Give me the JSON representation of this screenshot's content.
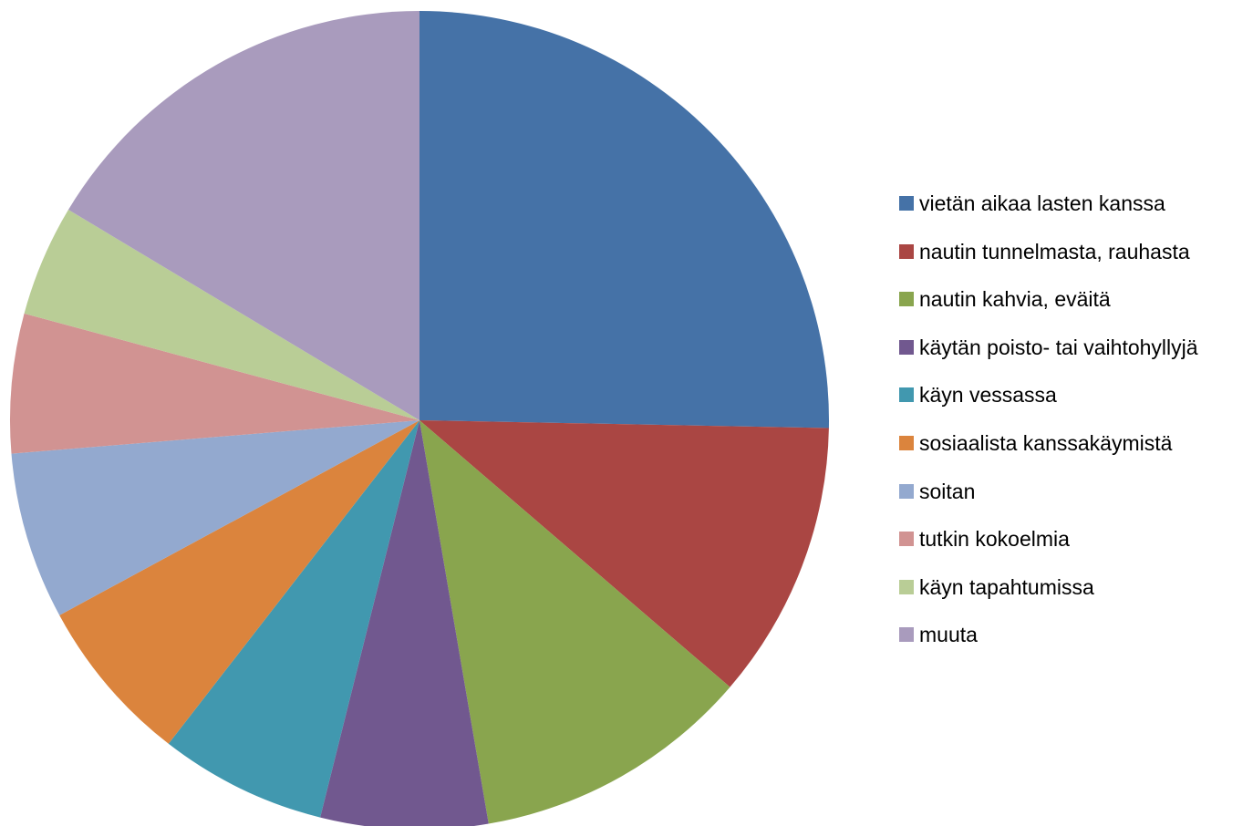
{
  "chart_data": {
    "type": "pie",
    "start_angle_deg": 0,
    "direction": "clockwise",
    "legend_position": "right",
    "slices": [
      {
        "label": "vietän aikaa lasten kanssa",
        "value": 25.3,
        "color": "#4572A7"
      },
      {
        "label": "nautin tunnelmasta, rauhasta",
        "value": 11.0,
        "color": "#AA4643"
      },
      {
        "label": "nautin kahvia, eväitä",
        "value": 11.0,
        "color": "#89A54E"
      },
      {
        "label": "käytän poisto- tai vaihtohyllyjä",
        "value": 6.6,
        "color": "#71588F"
      },
      {
        "label": "käyn vessassa",
        "value": 6.6,
        "color": "#4198AF"
      },
      {
        "label": "sosiaalista kanssakäymistä",
        "value": 6.6,
        "color": "#DB843D"
      },
      {
        "label": "soitan",
        "value": 6.6,
        "color": "#93A9CF"
      },
      {
        "label": "tutkin kokoelmia",
        "value": 5.5,
        "color": "#D19392"
      },
      {
        "label": "käyn tapahtumissa",
        "value": 4.4,
        "color": "#B9CD96"
      },
      {
        "label": "muuta",
        "value": 16.4,
        "color": "#A99BBD"
      }
    ]
  }
}
